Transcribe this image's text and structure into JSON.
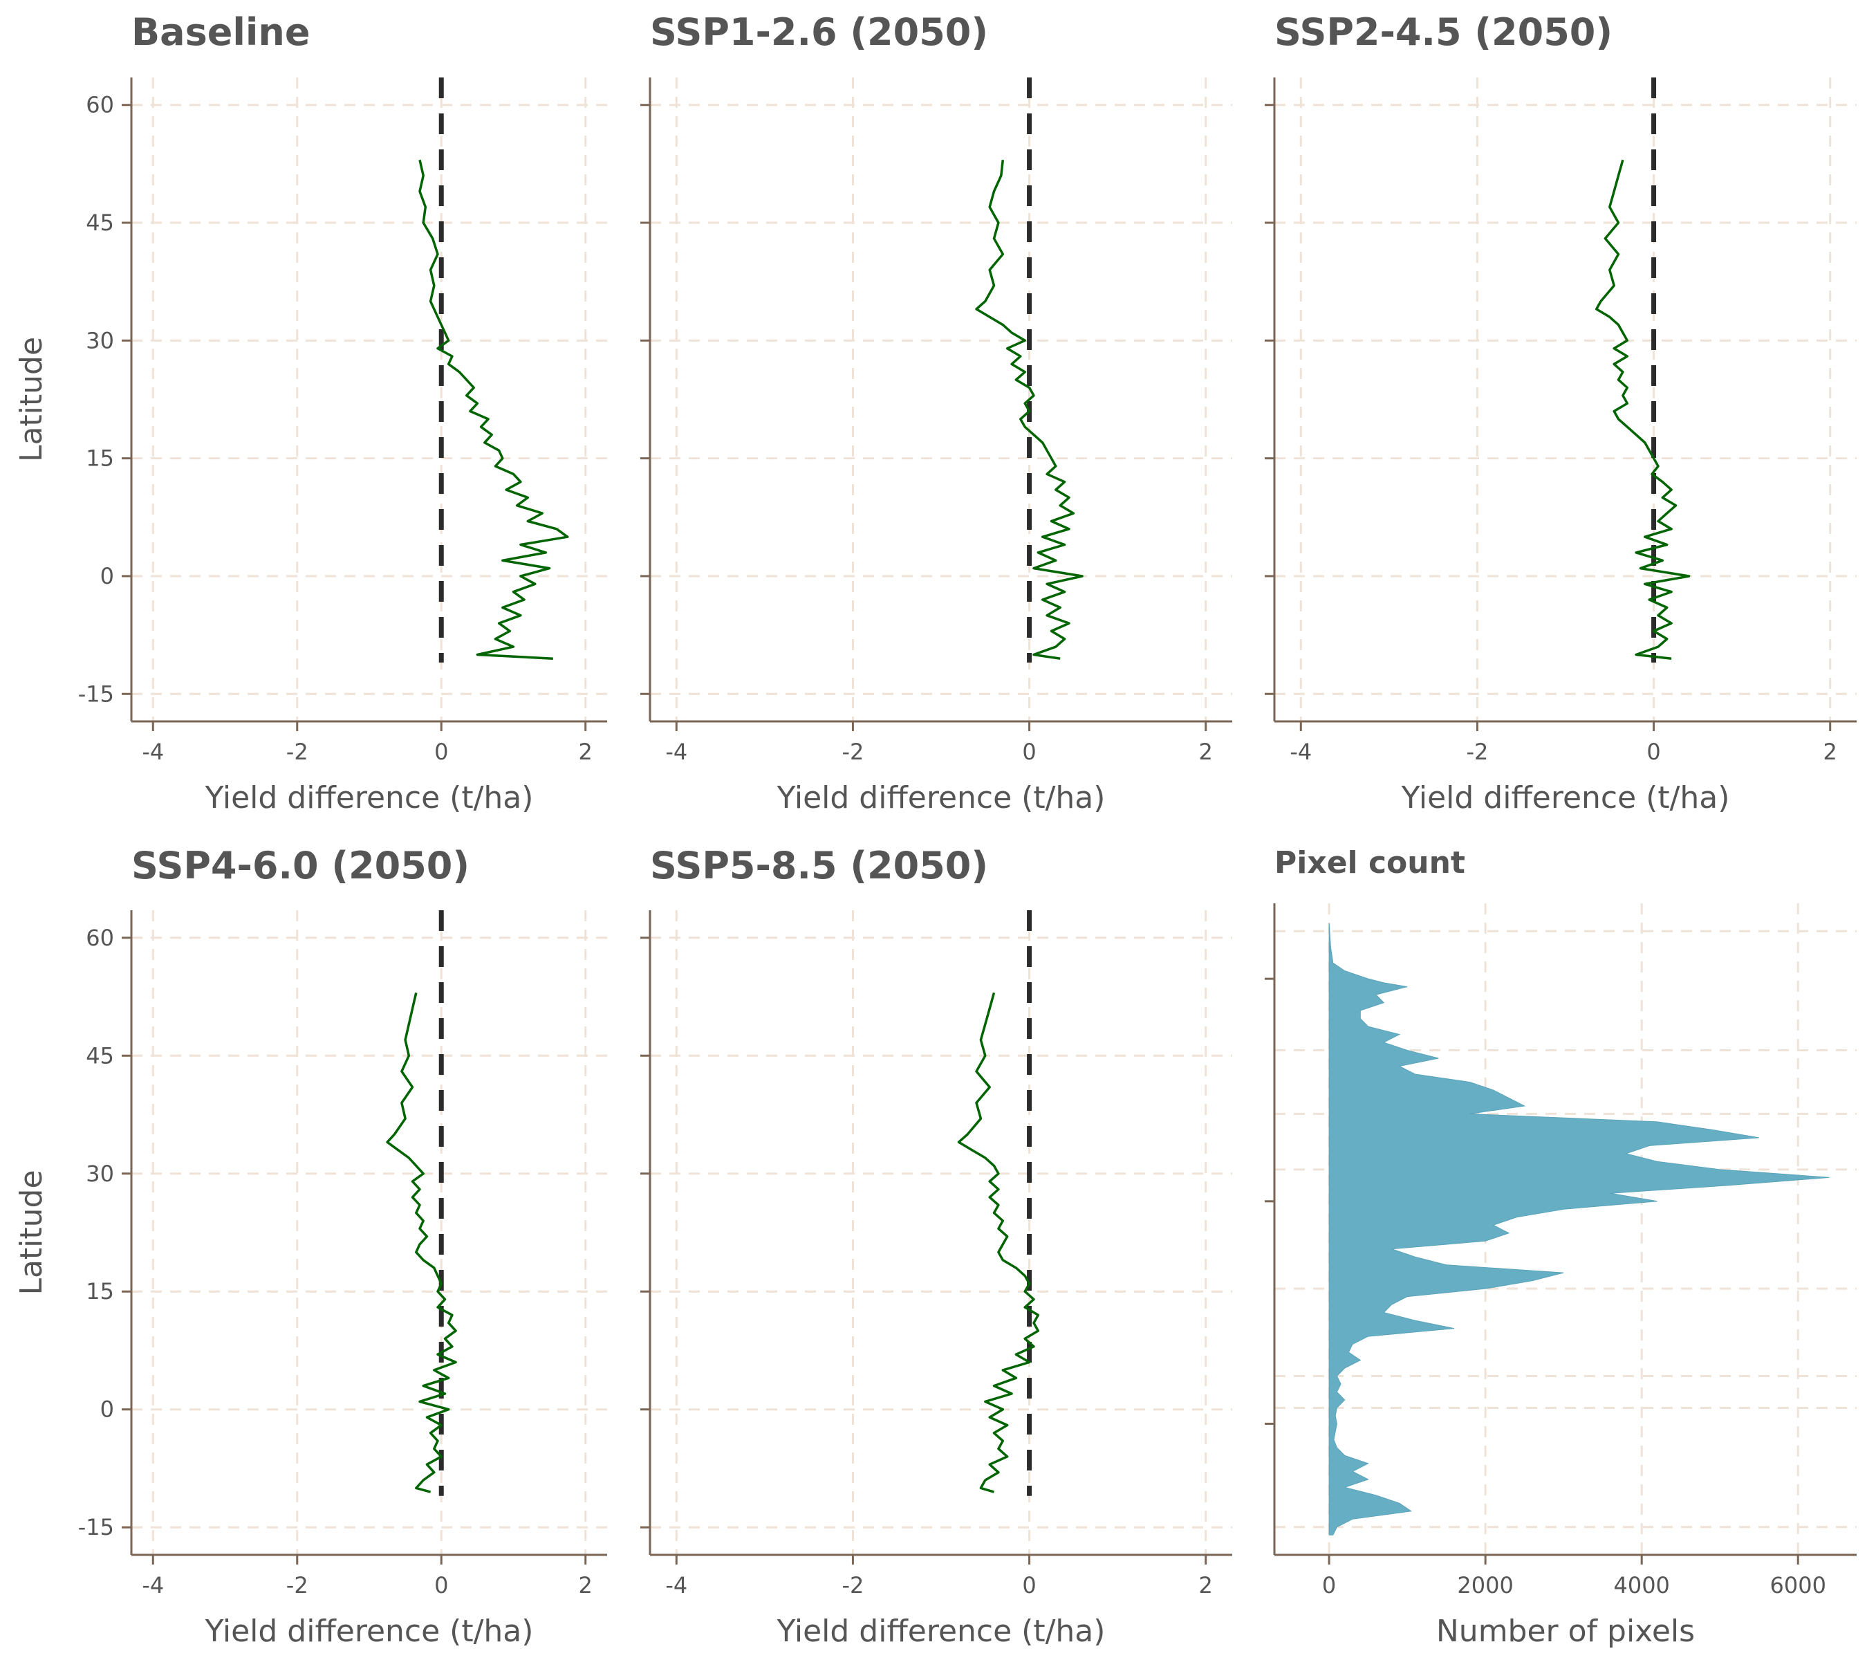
{
  "chart_data": [
    {
      "type": "line",
      "title": "Baseline",
      "xlabel": "Yield difference (t/ha)",
      "ylabel": "Latitude",
      "xlim": [
        -4.3,
        2.3
      ],
      "ylim": [
        -18.5,
        63.5
      ],
      "xticks": [
        "-4",
        "-2",
        "0",
        "2"
      ],
      "yticks": [
        "-15",
        "0",
        "15",
        "30",
        "45",
        "60"
      ],
      "reference_line_x": 0,
      "series": [
        {
          "lat": [
            53,
            51,
            49,
            47,
            45,
            43,
            41,
            39,
            37,
            35,
            33,
            31,
            30,
            29,
            28,
            27,
            26,
            25,
            24,
            23,
            22,
            21,
            20,
            19,
            18,
            17,
            16,
            15,
            14,
            13,
            12,
            11,
            10,
            9,
            8,
            7,
            6,
            5,
            4,
            3,
            2,
            1,
            0,
            -1,
            -2,
            -3,
            -4,
            -5,
            -6,
            -7,
            -8,
            -9,
            -10,
            -10.5
          ],
          "values": [
            -0.3,
            -0.25,
            -0.3,
            -0.22,
            -0.25,
            -0.12,
            -0.05,
            -0.15,
            -0.1,
            -0.15,
            -0.05,
            0.05,
            0.1,
            -0.05,
            0.15,
            0.1,
            0.25,
            0.35,
            0.45,
            0.35,
            0.5,
            0.4,
            0.65,
            0.55,
            0.7,
            0.6,
            0.8,
            0.85,
            0.75,
            1.0,
            1.1,
            0.9,
            1.2,
            1.05,
            1.4,
            1.2,
            1.6,
            1.75,
            1.1,
            1.45,
            0.85,
            1.5,
            1.1,
            1.3,
            1.0,
            1.15,
            0.85,
            1.1,
            0.8,
            0.95,
            0.75,
            1.0,
            0.5,
            1.55
          ]
        }
      ]
    },
    {
      "type": "line",
      "title": "SSP1-2.6 (2050)",
      "xlabel": "Yield difference (t/ha)",
      "ylabel": "",
      "xlim": [
        -4.3,
        2.3
      ],
      "ylim": [
        -18.5,
        63.5
      ],
      "xticks": [
        "-4",
        "-2",
        "0",
        "2"
      ],
      "reference_line_x": 0,
      "series": [
        {
          "lat": [
            53,
            51,
            49,
            47,
            45,
            43,
            41,
            39,
            37,
            35,
            34,
            33,
            32,
            31,
            30,
            29,
            28,
            27,
            26,
            25,
            24,
            23,
            22,
            21,
            20,
            19,
            18,
            17,
            16,
            15,
            14,
            13,
            12,
            11,
            10,
            9,
            8,
            7,
            6,
            5,
            4,
            3,
            2,
            1,
            0,
            -1,
            -2,
            -3,
            -4,
            -5,
            -6,
            -7,
            -8,
            -9,
            -10,
            -10.5
          ],
          "values": [
            -0.3,
            -0.32,
            -0.4,
            -0.45,
            -0.35,
            -0.4,
            -0.3,
            -0.45,
            -0.4,
            -0.5,
            -0.6,
            -0.45,
            -0.3,
            -0.2,
            -0.05,
            -0.25,
            -0.1,
            -0.2,
            -0.05,
            -0.15,
            0.0,
            0.05,
            -0.05,
            0.0,
            -0.1,
            -0.05,
            0.05,
            0.15,
            0.2,
            0.25,
            0.3,
            0.2,
            0.4,
            0.3,
            0.45,
            0.35,
            0.5,
            0.25,
            0.45,
            0.15,
            0.4,
            0.1,
            0.3,
            0.05,
            0.6,
            0.2,
            0.4,
            0.15,
            0.35,
            0.2,
            0.45,
            0.25,
            0.4,
            0.3,
            0.05,
            0.35
          ]
        }
      ]
    },
    {
      "type": "line",
      "title": "SSP2-4.5 (2050)",
      "xlabel": "Yield difference (t/ha)",
      "ylabel": "",
      "xlim": [
        -4.3,
        2.3
      ],
      "ylim": [
        -18.5,
        63.5
      ],
      "xticks": [
        "-4",
        "-2",
        "0",
        "2"
      ],
      "reference_line_x": 0,
      "series": [
        {
          "lat": [
            53,
            51,
            49,
            47,
            45,
            43,
            41,
            39,
            37,
            35,
            34,
            33,
            32,
            31,
            30,
            29,
            28,
            27,
            26,
            25,
            24,
            23,
            22,
            21,
            20,
            19,
            18,
            17,
            16,
            15,
            14,
            13,
            12,
            11,
            10,
            9,
            8,
            7,
            6,
            5,
            4,
            3,
            2,
            1,
            0,
            -1,
            -2,
            -3,
            -4,
            -5,
            -6,
            -7,
            -8,
            -9,
            -10,
            -10.5
          ],
          "values": [
            -0.35,
            -0.4,
            -0.45,
            -0.5,
            -0.4,
            -0.55,
            -0.4,
            -0.5,
            -0.45,
            -0.6,
            -0.65,
            -0.5,
            -0.4,
            -0.35,
            -0.3,
            -0.45,
            -0.3,
            -0.45,
            -0.35,
            -0.4,
            -0.3,
            -0.35,
            -0.3,
            -0.45,
            -0.4,
            -0.3,
            -0.2,
            -0.1,
            -0.05,
            0.0,
            0.05,
            -0.02,
            0.1,
            0.2,
            0.1,
            0.25,
            0.15,
            0.05,
            0.2,
            -0.1,
            0.15,
            -0.2,
            0.1,
            -0.15,
            0.4,
            -0.1,
            0.2,
            -0.05,
            0.15,
            0.05,
            0.2,
            0.0,
            0.15,
            0.05,
            -0.2,
            0.2
          ]
        }
      ]
    },
    {
      "type": "line",
      "title": "SSP4-6.0 (2050)",
      "xlabel": "Yield difference (t/ha)",
      "ylabel": "Latitude",
      "xlim": [
        -4.3,
        2.3
      ],
      "ylim": [
        -18.5,
        63.5
      ],
      "xticks": [
        "-4",
        "-2",
        "0",
        "2"
      ],
      "yticks": [
        "-15",
        "0",
        "15",
        "30",
        "45",
        "60"
      ],
      "reference_line_x": 0,
      "series": [
        {
          "lat": [
            53,
            51,
            49,
            47,
            45,
            43,
            41,
            39,
            37,
            35,
            34,
            33,
            32,
            31,
            30,
            29,
            28,
            27,
            26,
            25,
            24,
            23,
            22,
            21,
            20,
            19,
            18,
            17,
            16,
            15,
            14,
            13,
            12,
            11,
            10,
            9,
            8,
            7,
            6,
            5,
            4,
            3,
            2,
            1,
            0,
            -1,
            -2,
            -3,
            -4,
            -5,
            -6,
            -7,
            -8,
            -9,
            -10,
            -10.5
          ],
          "values": [
            -0.35,
            -0.4,
            -0.45,
            -0.5,
            -0.45,
            -0.55,
            -0.4,
            -0.55,
            -0.5,
            -0.65,
            -0.75,
            -0.6,
            -0.45,
            -0.35,
            -0.25,
            -0.4,
            -0.3,
            -0.4,
            -0.3,
            -0.35,
            -0.25,
            -0.3,
            -0.2,
            -0.3,
            -0.35,
            -0.25,
            -0.1,
            -0.05,
            0.0,
            -0.05,
            0.05,
            -0.05,
            0.15,
            0.1,
            0.2,
            0.05,
            0.15,
            -0.05,
            0.2,
            -0.1,
            0.1,
            -0.25,
            0.05,
            -0.3,
            0.1,
            -0.2,
            0.0,
            -0.15,
            -0.05,
            -0.1,
            0.0,
            -0.2,
            -0.1,
            -0.25,
            -0.35,
            -0.15
          ]
        }
      ]
    },
    {
      "type": "line",
      "title": "SSP5-8.5 (2050)",
      "xlabel": "Yield difference (t/ha)",
      "ylabel": "",
      "xlim": [
        -4.3,
        2.3
      ],
      "ylim": [
        -18.5,
        63.5
      ],
      "xticks": [
        "-4",
        "-2",
        "0",
        "2"
      ],
      "reference_line_x": 0,
      "series": [
        {
          "lat": [
            53,
            51,
            49,
            47,
            45,
            43,
            41,
            39,
            37,
            35,
            34,
            33,
            32,
            31,
            30,
            29,
            28,
            27,
            26,
            25,
            24,
            23,
            22,
            21,
            20,
            19,
            18,
            17,
            16,
            15,
            14,
            13,
            12,
            11,
            10,
            9,
            8,
            7,
            6,
            5,
            4,
            3,
            2,
            1,
            0,
            -1,
            -2,
            -3,
            -4,
            -5,
            -6,
            -7,
            -8,
            -9,
            -10,
            -10.5
          ],
          "values": [
            -0.4,
            -0.45,
            -0.5,
            -0.55,
            -0.5,
            -0.6,
            -0.45,
            -0.6,
            -0.55,
            -0.7,
            -0.8,
            -0.65,
            -0.5,
            -0.4,
            -0.35,
            -0.45,
            -0.35,
            -0.45,
            -0.35,
            -0.4,
            -0.3,
            -0.35,
            -0.25,
            -0.3,
            -0.35,
            -0.3,
            -0.15,
            -0.05,
            0.0,
            -0.05,
            0.05,
            -0.05,
            0.1,
            0.05,
            0.1,
            -0.05,
            0.05,
            -0.15,
            0.0,
            -0.3,
            -0.15,
            -0.4,
            -0.2,
            -0.5,
            -0.3,
            -0.45,
            -0.25,
            -0.4,
            -0.3,
            -0.35,
            -0.25,
            -0.45,
            -0.35,
            -0.5,
            -0.55,
            -0.4
          ]
        }
      ]
    },
    {
      "type": "area",
      "title": "Pixel count",
      "xlabel": "Number of pixels",
      "ylabel": "",
      "xlim": [
        -700,
        6750
      ],
      "ylim": [
        -18.5,
        63.5
      ],
      "xticks": [
        "0",
        "2000",
        "4000",
        "6000"
      ],
      "series": [
        {
          "lat": [
            61,
            58,
            56,
            55,
            54,
            53.5,
            53,
            52,
            51,
            50,
            49,
            48,
            47,
            46,
            45,
            44,
            43,
            42,
            41,
            40,
            39,
            38,
            37,
            36,
            35,
            34,
            33,
            32,
            31,
            30,
            29,
            28,
            27,
            26,
            25,
            24,
            23,
            22,
            21,
            20,
            19,
            18,
            17,
            16,
            15,
            14,
            13,
            12,
            11,
            10,
            9,
            8,
            7,
            6,
            5,
            4,
            3,
            2,
            1,
            0,
            -1,
            -2,
            -3,
            -4,
            -5,
            -6,
            -7,
            -8,
            -9,
            -10,
            -11,
            -12,
            -13,
            -14,
            -15,
            -16
          ],
          "values": [
            0,
            20,
            50,
            200,
            500,
            700,
            1000,
            600,
            700,
            400,
            400,
            500,
            900,
            700,
            1000,
            1400,
            900,
            1100,
            1800,
            2100,
            2300,
            2500,
            1800,
            4200,
            4900,
            5500,
            4100,
            3800,
            4200,
            5000,
            6400,
            5100,
            3600,
            4200,
            3000,
            2400,
            2100,
            2300,
            2000,
            800,
            1100,
            1500,
            3000,
            2600,
            2000,
            1000,
            800,
            700,
            1100,
            1600,
            500,
            300,
            250,
            400,
            200,
            100,
            150,
            100,
            200,
            100,
            80,
            100,
            80,
            60,
            100,
            200,
            500,
            300,
            500,
            200,
            600,
            900,
            1050,
            300,
            100,
            50
          ]
        }
      ]
    }
  ]
}
